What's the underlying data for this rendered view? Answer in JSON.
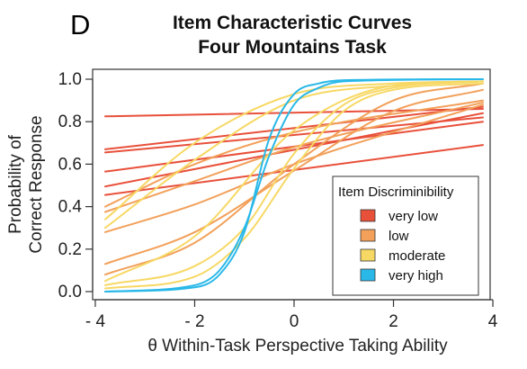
{
  "panel_label": "D",
  "chart_data": {
    "type": "line",
    "title": "Item Characteristic Curves",
    "subtitle": "Four Mountains Task",
    "xlabel": "θ Within-Task Perspective Taking Ability",
    "ylabel_lines": [
      "Probability of",
      "Correct Response"
    ],
    "xlim": [
      -4,
      4
    ],
    "ylim": [
      0.0,
      1.0
    ],
    "x_range": [
      -3.8,
      3.8
    ],
    "x_ticks": [
      -4,
      -2,
      0,
      2,
      4
    ],
    "x_tick_labels": [
      "- 4",
      "- 2",
      "0",
      "2",
      "4"
    ],
    "y_ticks": [
      0.0,
      0.2,
      0.4,
      0.6,
      0.8,
      1.0
    ],
    "y_tick_labels": [
      "0.0",
      "0.2",
      "0.4",
      "0.6",
      "0.8",
      "1.0"
    ],
    "grid": false,
    "legend": {
      "title": "Item Discriminibility",
      "position": "bottom-right",
      "entries": [
        {
          "label": "very low",
          "color": "#e8503a"
        },
        {
          "label": "low",
          "color": "#f2a05a"
        },
        {
          "label": "moderate",
          "color": "#f7d864"
        },
        {
          "label": "very high",
          "color": "#29b8e8"
        }
      ]
    },
    "series": [
      {
        "group": "very low",
        "color": "#e8503a",
        "points": [
          [
            -3.8,
            0.825
          ],
          [
            3.8,
            0.86
          ]
        ]
      },
      {
        "group": "very low",
        "color": "#e8503a",
        "points": [
          [
            -3.8,
            0.67
          ],
          [
            3.8,
            0.87
          ]
        ]
      },
      {
        "group": "very low",
        "color": "#e8503a",
        "points": [
          [
            -3.8,
            0.655
          ],
          [
            3.8,
            0.82
          ]
        ]
      },
      {
        "group": "very low",
        "color": "#e8503a",
        "points": [
          [
            -3.8,
            0.565
          ],
          [
            3.8,
            0.8
          ]
        ]
      },
      {
        "group": "very low",
        "color": "#e8503a",
        "points": [
          [
            -3.8,
            0.495
          ],
          [
            3.8,
            0.84
          ]
        ]
      },
      {
        "group": "very low",
        "color": "#e8503a",
        "points": [
          [
            -3.8,
            0.455
          ],
          [
            3.8,
            0.69
          ]
        ]
      },
      {
        "group": "low",
        "color": "#f2a05a",
        "points": [
          [
            -3.8,
            0.4
          ],
          [
            -2,
            0.6
          ],
          [
            0,
            0.75
          ],
          [
            3.8,
            0.9
          ]
        ]
      },
      {
        "group": "low",
        "color": "#f2a05a",
        "points": [
          [
            -3.8,
            0.375
          ],
          [
            -2,
            0.52
          ],
          [
            0,
            0.68
          ],
          [
            3.8,
            0.89
          ]
        ]
      },
      {
        "group": "low",
        "color": "#f2a05a",
        "points": [
          [
            -3.8,
            0.28
          ],
          [
            -2,
            0.41
          ],
          [
            0,
            0.6
          ],
          [
            3.8,
            0.88
          ]
        ]
      },
      {
        "group": "low",
        "color": "#f2a05a",
        "points": [
          [
            -3.8,
            0.13
          ],
          [
            -2,
            0.28
          ],
          [
            0,
            0.57
          ],
          [
            2,
            0.85
          ],
          [
            3.8,
            0.95
          ]
        ]
      },
      {
        "group": "low",
        "color": "#f2a05a",
        "points": [
          [
            -3.8,
            0.08
          ],
          [
            -2,
            0.23
          ],
          [
            0,
            0.6
          ],
          [
            2,
            0.9
          ],
          [
            3.8,
            0.98
          ]
        ]
      },
      {
        "group": "moderate",
        "color": "#f7d864",
        "points": [
          [
            -3.8,
            0.34
          ],
          [
            -2,
            0.7
          ],
          [
            0,
            0.93
          ],
          [
            2,
            0.98
          ],
          [
            3.8,
            0.99
          ]
        ]
      },
      {
        "group": "moderate",
        "color": "#f7d864",
        "points": [
          [
            -3.8,
            0.3
          ],
          [
            -2,
            0.62
          ],
          [
            0,
            0.9
          ],
          [
            2,
            0.97
          ],
          [
            3.8,
            0.99
          ]
        ]
      },
      {
        "group": "moderate",
        "color": "#f7d864",
        "points": [
          [
            -3.8,
            0.05
          ],
          [
            -2,
            0.26
          ],
          [
            0,
            0.76
          ],
          [
            2,
            0.97
          ],
          [
            3.8,
            0.99
          ]
        ]
      },
      {
        "group": "moderate",
        "color": "#f7d864",
        "points": [
          [
            -3.8,
            0.03
          ],
          [
            -2,
            0.12
          ],
          [
            -1,
            0.3
          ],
          [
            0,
            0.65
          ],
          [
            1,
            0.88
          ],
          [
            2,
            0.96
          ],
          [
            3.8,
            0.99
          ]
        ]
      },
      {
        "group": "moderate",
        "color": "#f7d864",
        "points": [
          [
            -3.8,
            0.015
          ],
          [
            -2,
            0.07
          ],
          [
            -1,
            0.25
          ],
          [
            0,
            0.58
          ],
          [
            1,
            0.85
          ],
          [
            2,
            0.95
          ],
          [
            3.8,
            0.98
          ]
        ]
      },
      {
        "group": "very high",
        "color": "#29b8e8",
        "points": [
          [
            -3.8,
            0.0
          ],
          [
            -2,
            0.02
          ],
          [
            -1.5,
            0.08
          ],
          [
            -1,
            0.28
          ],
          [
            -0.5,
            0.72
          ],
          [
            0,
            0.93
          ],
          [
            0.5,
            0.98
          ],
          [
            1,
            0.995
          ],
          [
            3.8,
            1.0
          ]
        ]
      },
      {
        "group": "very high",
        "color": "#29b8e8",
        "points": [
          [
            -3.8,
            0.0
          ],
          [
            -2,
            0.03
          ],
          [
            -1.5,
            0.1
          ],
          [
            -1,
            0.3
          ],
          [
            -0.5,
            0.64
          ],
          [
            0,
            0.88
          ],
          [
            0.5,
            0.96
          ],
          [
            1,
            0.99
          ],
          [
            3.8,
            1.0
          ]
        ]
      }
    ]
  }
}
